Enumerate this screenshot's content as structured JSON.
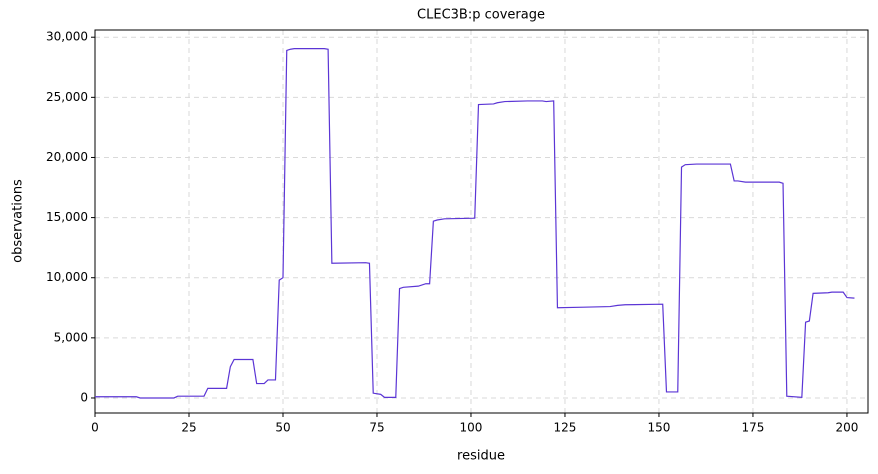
{
  "chart_data": {
    "type": "line",
    "title": "CLEC3B:p coverage",
    "x_label": "residue",
    "y_label": "observations",
    "x": [
      0,
      11,
      12,
      21,
      22,
      29,
      30,
      35,
      36,
      37,
      42,
      43,
      45,
      46,
      48,
      49,
      50,
      51,
      52,
      53,
      61,
      62,
      63,
      72,
      73,
      74,
      76,
      77,
      80,
      81,
      82,
      86,
      88,
      89,
      90,
      91,
      93,
      101,
      102,
      106,
      107,
      109,
      115,
      119,
      120,
      122,
      123,
      130,
      137,
      139,
      141,
      151,
      152,
      155,
      156,
      157,
      160,
      169,
      170,
      171,
      173,
      182,
      183,
      184,
      188,
      189,
      190,
      191,
      195,
      196,
      199,
      200,
      202
    ],
    "series": [
      {
        "name": "coverage",
        "color": "#5b35d5",
        "values": [
          100,
          100,
          0,
          0,
          150,
          150,
          800,
          800,
          2600,
          3200,
          3200,
          1200,
          1200,
          1500,
          1500,
          9800,
          10000,
          28900,
          29000,
          29050,
          29050,
          29000,
          11200,
          11250,
          11200,
          400,
          300,
          50,
          50,
          9100,
          9200,
          9300,
          9500,
          9500,
          14700,
          14800,
          14900,
          14950,
          24400,
          24450,
          24550,
          24650,
          24700,
          24700,
          24650,
          24700,
          7500,
          7550,
          7600,
          7700,
          7750,
          7800,
          500,
          500,
          19200,
          19400,
          19450,
          19450,
          18050,
          18050,
          17950,
          17950,
          17850,
          150,
          50,
          6300,
          6400,
          8700,
          8750,
          8800,
          8800,
          8350,
          8300
        ]
      }
    ],
    "xlim": [
      0,
      205.6
    ],
    "ylim": [
      -1250,
      30600
    ],
    "xticks": [
      0,
      25,
      50,
      75,
      100,
      125,
      150,
      175,
      200
    ],
    "yticks": [
      0,
      {
        "value": 5000,
        "label": "5,000"
      },
      {
        "value": 10000,
        "label": "10,000"
      },
      {
        "value": 15000,
        "label": "15,000"
      },
      {
        "value": 20000,
        "label": "20,000"
      },
      {
        "value": 25000,
        "label": "25,000"
      },
      {
        "value": 30000,
        "label": "30,000"
      }
    ],
    "grid": true
  }
}
